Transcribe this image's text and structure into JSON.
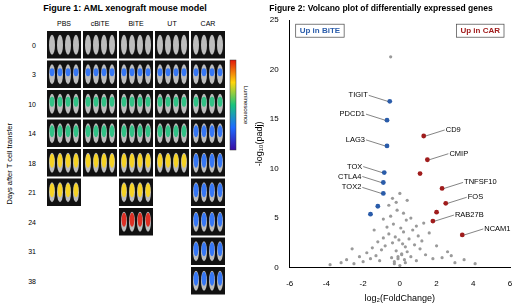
{
  "figure_1": {
    "title": "Figure 1: AML xenograft mouse model",
    "y_label": "Days after T cell transfer",
    "days": [
      0,
      3,
      10,
      14,
      18,
      21,
      24,
      31,
      38
    ],
    "groups": [
      {
        "name": "PBS",
        "last_day": 21
      },
      {
        "name": "cBiTE",
        "last_day": 18
      },
      {
        "name": "BiTE",
        "last_day": 24
      },
      {
        "name": "UT",
        "last_day": 18
      },
      {
        "name": "CAR",
        "last_day": 38
      }
    ],
    "colorbar": {
      "label": "Luminescence"
    }
  },
  "chart_data": {
    "type": "scatter",
    "title": "Figure 2: Volcano plot of differentially expressed genes",
    "x_label": "log₂(FoldChange)",
    "y_label": "-log₁₀(padj)",
    "xlim": [
      -6,
      6
    ],
    "xticks": [
      -6,
      -4,
      -2,
      0,
      2,
      4,
      6
    ],
    "ylim": [
      0,
      25
    ],
    "yticks": [
      0,
      5,
      10,
      15,
      20,
      25
    ],
    "grid": false,
    "series": [
      {
        "color": "#9a9a9a",
        "x": [
          -3.8,
          -3.2,
          -2.9,
          -2.5,
          -2.2,
          -2.0,
          -1.8,
          -1.6,
          -1.5,
          -1.3,
          -1.2,
          -1.1,
          -1.0,
          -0.9,
          -0.8,
          -0.7,
          -0.6,
          -0.5,
          -0.45,
          -0.4,
          -0.35,
          -0.3,
          -0.25,
          -0.2,
          -0.15,
          -0.1,
          -0.05,
          0,
          0.05,
          0.1,
          0.15,
          0.2,
          0.25,
          0.3,
          0.35,
          0.4,
          0.5,
          0.6,
          0.7,
          0.8,
          0.9,
          1.0,
          1.1,
          1.2,
          1.4,
          1.6,
          1.8,
          2.0,
          2.3,
          2.6,
          3.0,
          3.5,
          4.1,
          -0.6,
          -0.4,
          -0.2,
          0.2,
          0.4,
          0.6,
          -0.3,
          0.3,
          -1.4,
          1.3,
          -2.6,
          2.8,
          -0.9,
          0.9,
          0.0,
          -0.1,
          0.1,
          -0.5
        ],
        "values": [
          0.3,
          0.5,
          0.8,
          0.4,
          1.1,
          0.6,
          1.5,
          0.9,
          2.0,
          1.2,
          2.6,
          0.7,
          1.8,
          3.0,
          2.2,
          4.1,
          3.4,
          5.2,
          1.0,
          2.5,
          4.4,
          0.6,
          3.1,
          1.7,
          5.8,
          0.9,
          2.8,
          0.2,
          4.0,
          1.4,
          2.4,
          3.6,
          0.8,
          2.1,
          4.8,
          1.6,
          2.9,
          1.1,
          3.8,
          2.3,
          0.7,
          3.2,
          1.9,
          2.7,
          1.3,
          3.5,
          0.9,
          2.2,
          1.0,
          1.6,
          0.5,
          0.8,
          0.4,
          6.3,
          7.0,
          6.6,
          5.5,
          6.8,
          5.0,
          0.4,
          0.5,
          3.8,
          4.5,
          1.9,
          1.2,
          4.9,
          4.2,
          7.5,
          1.1,
          1.3,
          21.3
        ]
      },
      {
        "name": "Up in BiTE",
        "color": "#2a5caa",
        "x": [
          -0.55,
          -0.7,
          -0.7,
          -0.85,
          -0.9,
          -0.9,
          -1.2,
          -1.6
        ],
        "values": [
          16.8,
          14.9,
          12.3,
          9.6,
          8.6,
          7.5,
          6.2,
          5.4
        ],
        "point_labels": [
          "TIGIT",
          "PDCD1",
          "LAG3",
          "TOX",
          "CTLA4",
          "TOX2",
          null,
          null
        ]
      },
      {
        "name": "Up in CAR",
        "color": "#a01c1c",
        "x": [
          1.3,
          1.5,
          2.3,
          2.5,
          1.8,
          3.4,
          1.1,
          2.0
        ],
        "values": [
          13.3,
          10.9,
          8.0,
          6.5,
          4.7,
          3.3,
          9.5,
          5.6
        ],
        "point_labels": [
          "CD9",
          "CMIP",
          "TNFSF10",
          "FOS",
          "RAB27B",
          "NCAM1",
          null,
          null
        ]
      }
    ]
  }
}
